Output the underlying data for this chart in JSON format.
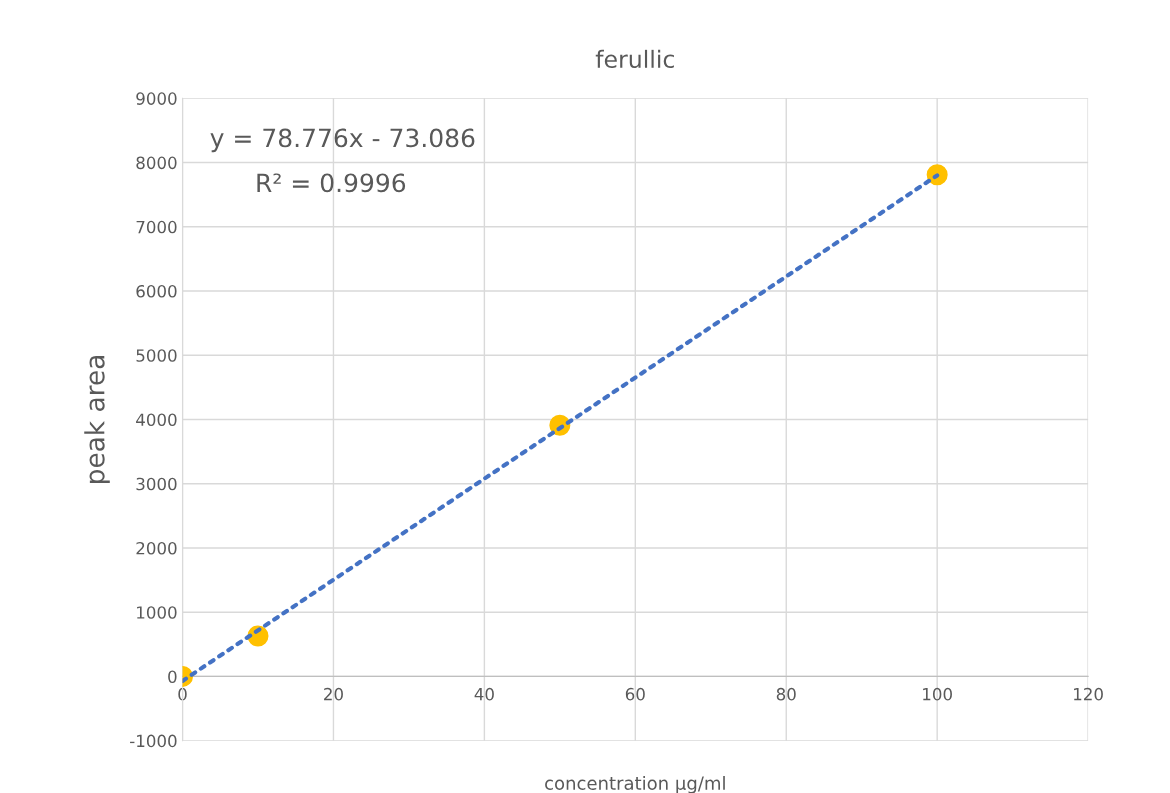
{
  "chart_data": {
    "type": "scatter",
    "title": "ferullic",
    "xlabel": "concentration µg/ml",
    "ylabel": "peak area",
    "x": [
      0,
      10,
      50,
      100
    ],
    "series": [
      {
        "color": "#ffc000",
        "marker": "circle",
        "values": [
          0,
          630,
          3910,
          7810
        ]
      },
      {
        "type": "line",
        "color": "#4472c4",
        "line_style": "dotted",
        "x": [
          0,
          100
        ],
        "values": [
          -70,
          7800
        ]
      }
    ],
    "annotations": [
      "y = 78.776x - 73.086",
      "R² = 0.9996"
    ],
    "xlim": [
      0,
      120
    ],
    "xticks": [
      0,
      20,
      40,
      60,
      80,
      100,
      120
    ],
    "ylim": [
      -1000,
      9000
    ],
    "yticks": [
      -1000,
      0,
      1000,
      2000,
      3000,
      4000,
      5000,
      6000,
      7000,
      8000,
      9000
    ],
    "grid": true,
    "legend": false
  }
}
